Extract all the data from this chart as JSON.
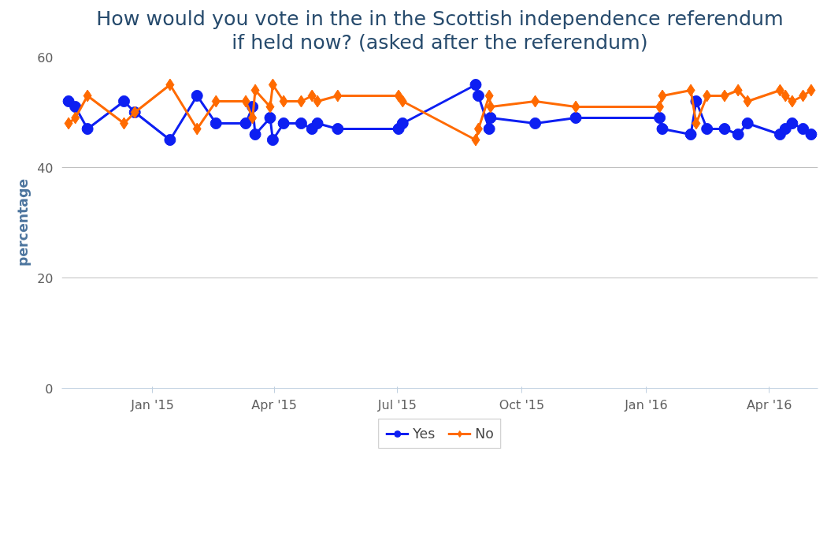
{
  "chart_data": {
    "type": "line",
    "title": "How would you vote in the in the Scottish independence referendum if held now? (asked after the referendum)",
    "ylabel": "percentage",
    "x": [
      "2014-10-31",
      "2014-11-05",
      "2014-11-14",
      "2014-12-11",
      "2014-12-19",
      "2015-01-14",
      "2015-02-03",
      "2015-02-17",
      "2015-03-11",
      "2015-03-16",
      "2015-03-18",
      "2015-03-29",
      "2015-03-31",
      "2015-04-08",
      "2015-04-21",
      "2015-04-29",
      "2015-05-03",
      "2015-05-18",
      "2015-07-02",
      "2015-07-05",
      "2015-08-28",
      "2015-08-30",
      "2015-09-07",
      "2015-09-08",
      "2015-10-11",
      "2015-11-10",
      "2016-01-11",
      "2016-01-13",
      "2016-02-03",
      "2016-02-07",
      "2016-02-15",
      "2016-02-28",
      "2016-03-09",
      "2016-03-16",
      "2016-04-09",
      "2016-04-13",
      "2016-04-18",
      "2016-04-26",
      "2016-05-02"
    ],
    "series": [
      {
        "name": "Yes",
        "color": "#0d1ff2",
        "marker": "circle",
        "values": [
          52,
          51,
          47,
          52,
          50,
          45,
          53,
          48,
          48,
          51,
          46,
          49,
          45,
          48,
          48,
          47,
          48,
          47,
          47,
          48,
          55,
          53,
          47,
          49,
          48,
          49,
          49,
          47,
          46,
          52,
          47,
          47,
          46,
          48,
          46,
          47,
          48,
          47,
          46
        ]
      },
      {
        "name": "No",
        "color": "#ff6a00",
        "marker": "diamond",
        "values": [
          48,
          49,
          53,
          48,
          50,
          55,
          47,
          52,
          52,
          49,
          54,
          51,
          55,
          52,
          52,
          53,
          52,
          53,
          53,
          52,
          45,
          47,
          53,
          51,
          52,
          51,
          51,
          53,
          54,
          48,
          53,
          53,
          54,
          52,
          54,
          53,
          52,
          53,
          54
        ]
      }
    ],
    "xlim": [
      "2014-10-26",
      "2016-05-07"
    ],
    "xticks": [
      {
        "value": "2015-01-01",
        "label": "Jan '15"
      },
      {
        "value": "2015-04-01",
        "label": "Apr '15"
      },
      {
        "value": "2015-07-01",
        "label": "Jul '15"
      },
      {
        "value": "2015-10-01",
        "label": "Oct '15"
      },
      {
        "value": "2016-01-01",
        "label": "Jan '16"
      },
      {
        "value": "2016-04-01",
        "label": "Apr '16"
      }
    ],
    "ylim": [
      0,
      60
    ],
    "yticks": [
      0,
      20,
      40,
      60
    ],
    "grid": "y",
    "legend": "bottom",
    "line_style": "solid"
  }
}
